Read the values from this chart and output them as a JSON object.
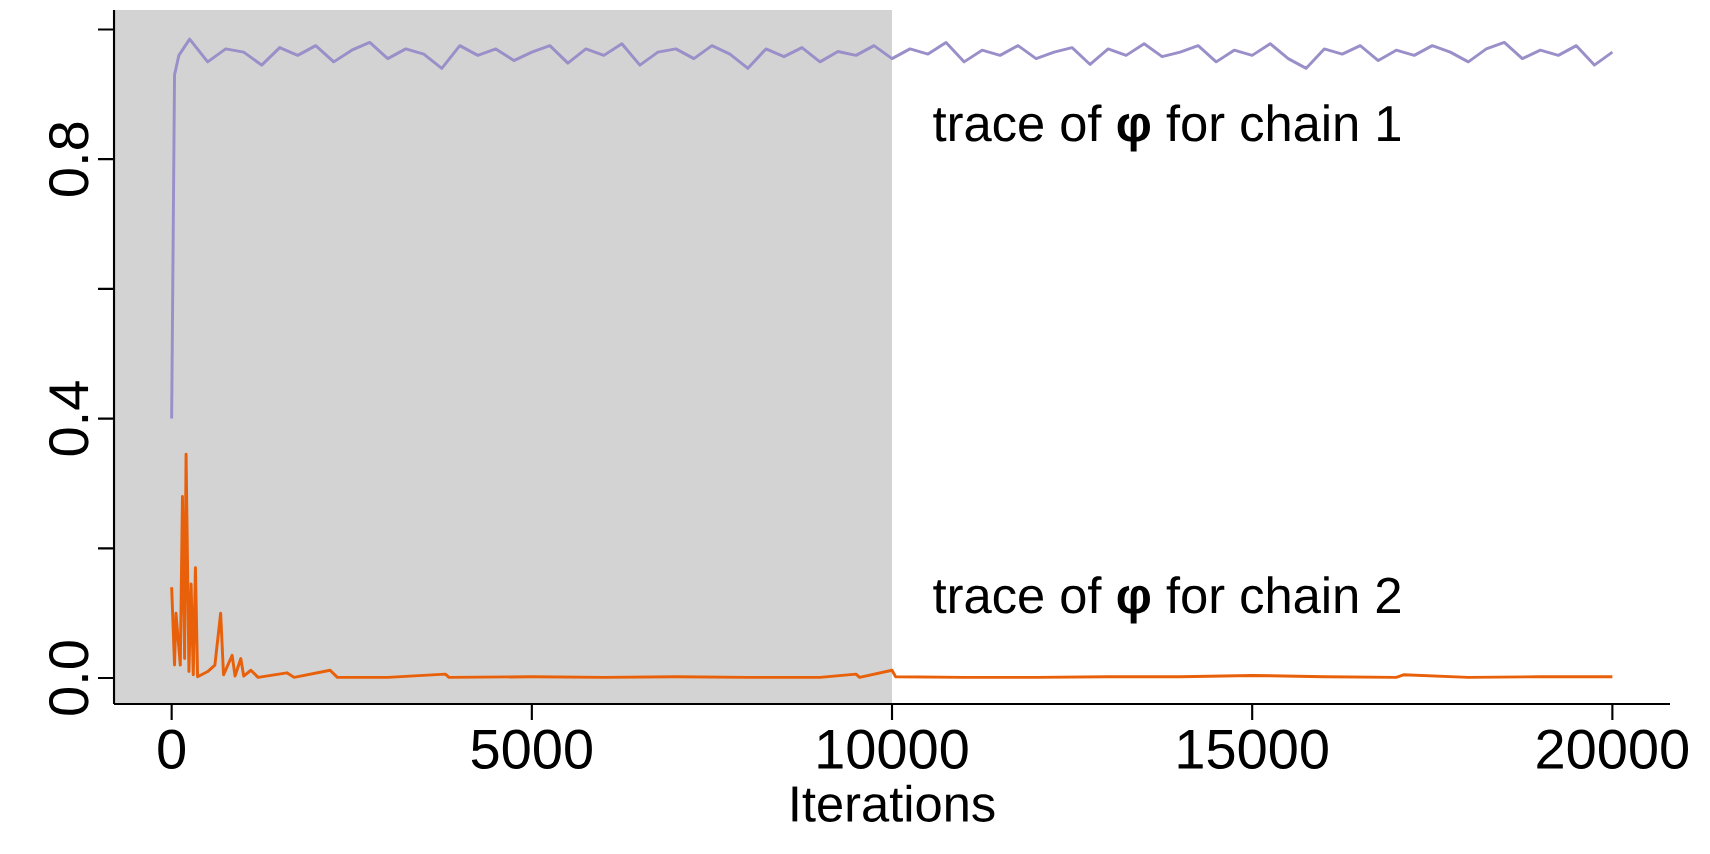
{
  "chart_data": {
    "type": "line",
    "xlabel": "Iterations",
    "xlim": [
      -800,
      20800
    ],
    "ylim": [
      -0.04,
      1.03
    ],
    "xticks": [
      0,
      5000,
      10000,
      15000,
      20000
    ],
    "yticks": [
      {
        "value": 0,
        "label": "0.0"
      },
      {
        "value": 0.2,
        "label": null
      },
      0.4,
      {
        "value": 0.6,
        "label": null
      },
      0.8,
      {
        "value": 1.0,
        "label": null
      }
    ],
    "grid": false,
    "line_style": "solid",
    "bands": [
      {
        "axis": "x",
        "from": -800,
        "to": 10000,
        "color": "#d3d3d3"
      }
    ],
    "series": [
      {
        "name": "trace of **φ** for chain 1",
        "color": "#9a8fc8",
        "x": [
          0,
          40,
          100,
          250,
          500,
          750,
          1000,
          1250,
          1500,
          1750,
          2000,
          2250,
          2500,
          2750,
          3000,
          3250,
          3500,
          3750,
          4000,
          4250,
          4500,
          4750,
          5000,
          5250,
          5500,
          5750,
          6000,
          6250,
          6500,
          6750,
          7000,
          7250,
          7500,
          7750,
          8000,
          8250,
          8500,
          8750,
          9000,
          9250,
          9500,
          9750,
          10000,
          10250,
          10500,
          10750,
          11000,
          11250,
          11500,
          11750,
          12000,
          12250,
          12500,
          12750,
          13000,
          13250,
          13500,
          13750,
          14000,
          14250,
          14500,
          14750,
          15000,
          15250,
          15500,
          15750,
          16000,
          16250,
          16500,
          16750,
          17000,
          17250,
          17500,
          17750,
          18000,
          18250,
          18500,
          18750,
          19000,
          19250,
          19500,
          19750,
          20000
        ],
        "values": [
          0.4,
          0.93,
          0.96,
          0.985,
          0.95,
          0.97,
          0.965,
          0.945,
          0.972,
          0.96,
          0.975,
          0.95,
          0.968,
          0.98,
          0.955,
          0.97,
          0.962,
          0.94,
          0.975,
          0.96,
          0.97,
          0.952,
          0.965,
          0.975,
          0.948,
          0.97,
          0.96,
          0.978,
          0.945,
          0.965,
          0.97,
          0.955,
          0.975,
          0.962,
          0.94,
          0.97,
          0.958,
          0.972,
          0.95,
          0.966,
          0.96,
          0.975,
          0.955,
          0.97,
          0.962,
          0.98,
          0.95,
          0.968,
          0.96,
          0.975,
          0.955,
          0.965,
          0.972,
          0.946,
          0.97,
          0.96,
          0.978,
          0.958,
          0.965,
          0.975,
          0.95,
          0.968,
          0.96,
          0.978,
          0.955,
          0.94,
          0.97,
          0.962,
          0.975,
          0.952,
          0.968,
          0.96,
          0.975,
          0.965,
          0.95,
          0.97,
          0.98,
          0.955,
          0.968,
          0.96,
          0.975,
          0.945,
          0.965
        ]
      },
      {
        "name": "trace of **φ** for chain 2",
        "color": "#e8600a",
        "x": [
          0,
          40,
          60,
          120,
          150,
          180,
          200,
          240,
          270,
          300,
          330,
          360,
          500,
          600,
          680,
          720,
          840,
          880,
          960,
          1000,
          1100,
          1200,
          1600,
          1700,
          2200,
          2300,
          3000,
          3800,
          3850,
          5000,
          6000,
          7000,
          8000,
          9000,
          9500,
          9550,
          10000,
          10050,
          11000,
          12000,
          13000,
          14000,
          15000,
          16000,
          17000,
          17100,
          18000,
          19000,
          20000
        ],
        "values": [
          0.14,
          0.02,
          0.1,
          0.02,
          0.28,
          0.03,
          0.345,
          0.01,
          0.145,
          0.005,
          0.17,
          0.002,
          0.01,
          0.02,
          0.1,
          0.005,
          0.035,
          0.003,
          0.03,
          0.003,
          0.012,
          0.001,
          0.008,
          0.001,
          0.012,
          0.001,
          0.001,
          0.006,
          0.001,
          0.002,
          0.001,
          0.002,
          0.001,
          0.001,
          0.006,
          0.001,
          0.012,
          0.002,
          0.001,
          0.001,
          0.002,
          0.002,
          0.004,
          0.002,
          0.001,
          0.005,
          0.001,
          0.002,
          0.002
        ]
      }
    ]
  }
}
